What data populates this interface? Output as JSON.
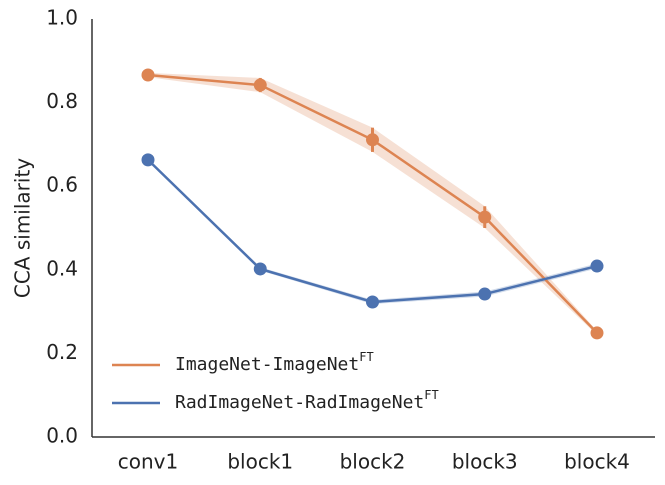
{
  "chart_data": {
    "type": "line",
    "ylabel": "CCA similarity",
    "categories": [
      "conv1",
      "block1",
      "block2",
      "block3",
      "block4"
    ],
    "series": [
      {
        "name": "ImageNet-ImageNet",
        "name_superscript": "FT",
        "color": "#dd8452",
        "values": [
          0.866,
          0.842,
          0.711,
          0.526,
          0.249
        ],
        "errors": [
          0.005,
          0.017,
          0.029,
          0.026,
          0.005
        ]
      },
      {
        "name": "RadImageNet-RadImageNet",
        "name_superscript": "FT",
        "color": "#4c72b0",
        "values": [
          0.663,
          0.402,
          0.323,
          0.342,
          0.409
        ],
        "errors": [
          0.003,
          0.004,
          0.005,
          0.006,
          0.006
        ]
      }
    ],
    "ylim": [
      0,
      1.0
    ],
    "yticks": [
      {
        "value": 0,
        "label": "0.0"
      },
      0.2,
      0.4,
      0.6,
      0.8,
      {
        "value": 1.0,
        "label": "1.0"
      }
    ],
    "legend": "lower left"
  }
}
